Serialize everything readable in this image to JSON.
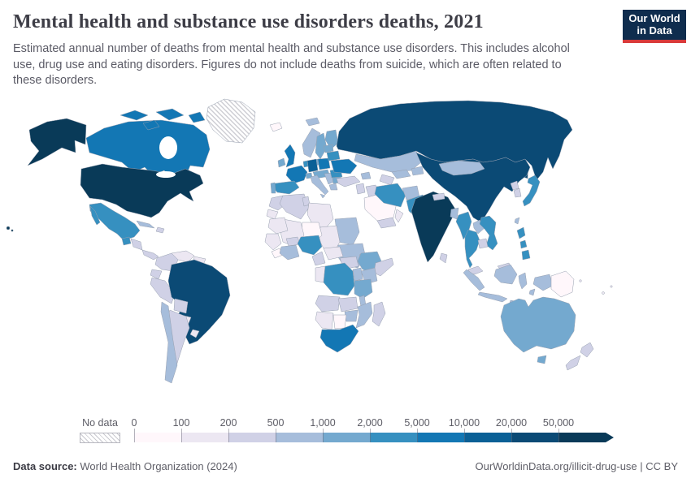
{
  "header": {
    "title": "Mental health and substance use disorders deaths, 2021",
    "logo": {
      "line1": "Our World",
      "line2": "in Data",
      "bg": "#0f2d4e",
      "accent": "#d93a3a"
    }
  },
  "subtitle": "Estimated annual number of deaths from mental health and substance use disorders. This includes alcohol use, drug use and eating disorders. Figures do not include deaths from suicide, which are often related to these disorders.",
  "legend": {
    "no_data_label": "No data"
  },
  "footer": {
    "source_label": "Data source:",
    "source_value": " World Health Organization (2024)",
    "link_text": "OurWorldinData.org/illicit-drug-use",
    "license_text": " | CC BY"
  },
  "chart_data": {
    "type": "heatmap",
    "subtype": "choropleth-world-map",
    "title": "Mental health and substance use disorders deaths",
    "year": 2021,
    "unit": "deaths",
    "legend_position": "bottom",
    "no_data_pattern": "diagonal-hatch",
    "bins": [
      {
        "label": "0",
        "range": "0–100",
        "color": "#fff7fb"
      },
      {
        "label": "100",
        "range": "100–200",
        "color": "#ece7f2"
      },
      {
        "label": "200",
        "range": "200–500",
        "color": "#d0d1e6"
      },
      {
        "label": "500",
        "range": "500–1,000",
        "color": "#a6bddb"
      },
      {
        "label": "1,000",
        "range": "1,000–2,000",
        "color": "#74a9cf"
      },
      {
        "label": "2,000",
        "range": "2,000–5,000",
        "color": "#3690c0"
      },
      {
        "label": "5,000",
        "range": "5,000–10,000",
        "color": "#1377b4"
      },
      {
        "label": "10,000",
        "range": "10,000–20,000",
        "color": "#0b6096"
      },
      {
        "label": "20,000",
        "range": "20,000–50,000",
        "color": "#0b4a75"
      },
      {
        "label": "50,000",
        "range": "50,000+",
        "color": "#093a58"
      }
    ],
    "regions": [
      {
        "id": "usa",
        "name": "United States",
        "bin": 9
      },
      {
        "id": "canada",
        "name": "Canada",
        "bin": 6
      },
      {
        "id": "greenland",
        "name": "Greenland",
        "bin": null
      },
      {
        "id": "mexico",
        "name": "Mexico",
        "bin": 5
      },
      {
        "id": "guatemala",
        "name": "Guatemala",
        "bin": 5
      },
      {
        "id": "honduras",
        "name": "Honduras/Nicaragua",
        "bin": 2
      },
      {
        "id": "panama",
        "name": "Costa Rica/Panama",
        "bin": 2
      },
      {
        "id": "cuba",
        "name": "Cuba",
        "bin": 3
      },
      {
        "id": "hispaniola",
        "name": "Haiti/Dominican Republic",
        "bin": 2
      },
      {
        "id": "colombia",
        "name": "Colombia",
        "bin": 2
      },
      {
        "id": "venezuela",
        "name": "Venezuela",
        "bin": 1
      },
      {
        "id": "guyanas",
        "name": "Guyana/Suriname",
        "bin": 1
      },
      {
        "id": "ecuador",
        "name": "Ecuador",
        "bin": 2
      },
      {
        "id": "peru",
        "name": "Peru",
        "bin": 2
      },
      {
        "id": "brazil",
        "name": "Brazil",
        "bin": 8
      },
      {
        "id": "bolivia",
        "name": "Bolivia",
        "bin": 2
      },
      {
        "id": "paraguay",
        "name": "Paraguay",
        "bin": 1
      },
      {
        "id": "uruguay",
        "name": "Uruguay",
        "bin": 1
      },
      {
        "id": "chile",
        "name": "Chile",
        "bin": 3
      },
      {
        "id": "argentina",
        "name": "Argentina",
        "bin": 2
      },
      {
        "id": "iceland",
        "name": "Iceland",
        "bin": 0
      },
      {
        "id": "svalbard",
        "name": "Svalbard (Norway)",
        "bin": 3
      },
      {
        "id": "norway",
        "name": "Norway",
        "bin": 3
      },
      {
        "id": "sweden",
        "name": "Sweden",
        "bin": 4
      },
      {
        "id": "finland",
        "name": "Finland",
        "bin": 4
      },
      {
        "id": "denmark",
        "name": "Denmark",
        "bin": 4
      },
      {
        "id": "uk",
        "name": "United Kingdom",
        "bin": 6
      },
      {
        "id": "ireland",
        "name": "Ireland",
        "bin": 4
      },
      {
        "id": "france",
        "name": "France",
        "bin": 6
      },
      {
        "id": "spain",
        "name": "Spain",
        "bin": 5
      },
      {
        "id": "portugal",
        "name": "Portugal",
        "bin": 4
      },
      {
        "id": "germany",
        "name": "Germany",
        "bin": 7
      },
      {
        "id": "benelux",
        "name": "Netherlands/Belgium",
        "bin": 5
      },
      {
        "id": "switzerland",
        "name": "Switzerland",
        "bin": 4
      },
      {
        "id": "central-europe",
        "name": "Czechia/Austria/Hungary",
        "bin": 4
      },
      {
        "id": "poland",
        "name": "Poland",
        "bin": 6
      },
      {
        "id": "italy",
        "name": "Italy",
        "bin": 3
      },
      {
        "id": "balkans",
        "name": "Balkans",
        "bin": 3
      },
      {
        "id": "greece",
        "name": "Greece",
        "bin": 3
      },
      {
        "id": "romania",
        "name": "Romania",
        "bin": 5
      },
      {
        "id": "bulgaria",
        "name": "Bulgaria",
        "bin": 4
      },
      {
        "id": "ukraine",
        "name": "Ukraine",
        "bin": 6
      },
      {
        "id": "belarus",
        "name": "Belarus",
        "bin": 5
      },
      {
        "id": "baltics",
        "name": "Baltic states",
        "bin": 4
      },
      {
        "id": "russia",
        "name": "Russia",
        "bin": 8
      },
      {
        "id": "kazakhstan",
        "name": "Kazakhstan",
        "bin": 3
      },
      {
        "id": "uzbekistan",
        "name": "Uzbekistan",
        "bin": 3
      },
      {
        "id": "turkmenistan",
        "name": "Turkmenistan",
        "bin": 2
      },
      {
        "id": "kyrgyzstan",
        "name": "Kyrgyzstan/Tajikistan",
        "bin": 3
      },
      {
        "id": "turkey",
        "name": "Turkey",
        "bin": 2
      },
      {
        "id": "caucasus",
        "name": "Caucasus",
        "bin": 3
      },
      {
        "id": "levant",
        "name": "Syria/Levant",
        "bin": 2
      },
      {
        "id": "iraq",
        "name": "Iraq",
        "bin": 2
      },
      {
        "id": "saudi",
        "name": "Saudi Arabia",
        "bin": 0
      },
      {
        "id": "yemen",
        "name": "Yemen",
        "bin": 2
      },
      {
        "id": "oman",
        "name": "Oman",
        "bin": 1
      },
      {
        "id": "iran",
        "name": "Iran",
        "bin": 5
      },
      {
        "id": "afghanistan",
        "name": "Afghanistan",
        "bin": 3
      },
      {
        "id": "pakistan",
        "name": "Pakistan",
        "bin": 5
      },
      {
        "id": "india",
        "name": "India",
        "bin": 9
      },
      {
        "id": "nepal",
        "name": "Nepal",
        "bin": 2
      },
      {
        "id": "bangladesh",
        "name": "Bangladesh",
        "bin": 3
      },
      {
        "id": "srilanka",
        "name": "Sri Lanka",
        "bin": 2
      },
      {
        "id": "china",
        "name": "China",
        "bin": 8
      },
      {
        "id": "mongolia",
        "name": "Mongolia",
        "bin": 3
      },
      {
        "id": "nkorea",
        "name": "North Korea",
        "bin": 2
      },
      {
        "id": "skorea",
        "name": "South Korea",
        "bin": 2
      },
      {
        "id": "japan",
        "name": "Japan",
        "bin": 5
      },
      {
        "id": "taiwan",
        "name": "Taiwan",
        "bin": 3
      },
      {
        "id": "myanmar",
        "name": "Myanmar",
        "bin": 5
      },
      {
        "id": "laos",
        "name": "Laos",
        "bin": 3
      },
      {
        "id": "vietnam",
        "name": "Vietnam",
        "bin": 5
      },
      {
        "id": "thailand",
        "name": "Thailand",
        "bin": 5
      },
      {
        "id": "cambodia",
        "name": "Cambodia",
        "bin": 2
      },
      {
        "id": "malaysia",
        "name": "Malaysia",
        "bin": 2
      },
      {
        "id": "indonesia",
        "name": "Indonesia",
        "bin": 3
      },
      {
        "id": "png",
        "name": "Papua New Guinea",
        "bin": 0
      },
      {
        "id": "philippines",
        "name": "Philippines",
        "bin": 5
      },
      {
        "id": "australia",
        "name": "Australia",
        "bin": 4
      },
      {
        "id": "nz",
        "name": "New Zealand",
        "bin": 2
      },
      {
        "id": "fiji",
        "name": "Pacific island states",
        "bin": 1
      },
      {
        "id": "morocco",
        "name": "Morocco",
        "bin": 2
      },
      {
        "id": "wsahara",
        "name": "Western Sahara",
        "bin": 1
      },
      {
        "id": "algeria",
        "name": "Algeria",
        "bin": 2
      },
      {
        "id": "tunisia",
        "name": "Tunisia",
        "bin": 2
      },
      {
        "id": "libya",
        "name": "Libya",
        "bin": 1
      },
      {
        "id": "egypt",
        "name": "Egypt",
        "bin": 3
      },
      {
        "id": "sudan",
        "name": "Sudan",
        "bin": 3
      },
      {
        "id": "eritrea",
        "name": "Eritrea/Djibouti",
        "bin": 2
      },
      {
        "id": "mauritania",
        "name": "Mauritania",
        "bin": 1
      },
      {
        "id": "mali",
        "name": "Mali",
        "bin": 1
      },
      {
        "id": "niger",
        "name": "Niger",
        "bin": 0
      },
      {
        "id": "chad",
        "name": "Chad",
        "bin": 1
      },
      {
        "id": "senegal",
        "name": "Senegal/Guinea",
        "bin": 1
      },
      {
        "id": "sierra",
        "name": "Sierra Leone/Liberia",
        "bin": 0
      },
      {
        "id": "ghana",
        "name": "Côte d'Ivoire/Ghana",
        "bin": 3
      },
      {
        "id": "burkina",
        "name": "Burkina Faso",
        "bin": 2
      },
      {
        "id": "nigeria",
        "name": "Nigeria",
        "bin": 5
      },
      {
        "id": "cameroon",
        "name": "Cameroon",
        "bin": 2
      },
      {
        "id": "car",
        "name": "Central African Republic",
        "bin": 1
      },
      {
        "id": "ssudan",
        "name": "South Sudan",
        "bin": 2
      },
      {
        "id": "ethiopia",
        "name": "Ethiopia",
        "bin": 4
      },
      {
        "id": "somalia",
        "name": "Somalia",
        "bin": 2
      },
      {
        "id": "kenya",
        "name": "Kenya",
        "bin": 3
      },
      {
        "id": "uganda",
        "name": "Uganda",
        "bin": 3
      },
      {
        "id": "drc",
        "name": "Democratic Republic of Congo",
        "bin": 5
      },
      {
        "id": "congo",
        "name": "Congo/Gabon",
        "bin": 1
      },
      {
        "id": "tanzania",
        "name": "Tanzania",
        "bin": 4
      },
      {
        "id": "angola",
        "name": "Angola",
        "bin": 2
      },
      {
        "id": "zambia",
        "name": "Zambia",
        "bin": 2
      },
      {
        "id": "malawi",
        "name": "Malawi",
        "bin": 3
      },
      {
        "id": "mozambique",
        "name": "Mozambique",
        "bin": 3
      },
      {
        "id": "zimbabwe",
        "name": "Zimbabwe",
        "bin": 3
      },
      {
        "id": "namibia",
        "name": "Namibia",
        "bin": 1
      },
      {
        "id": "botswana",
        "name": "Botswana",
        "bin": 0
      },
      {
        "id": "southafrica",
        "name": "South Africa",
        "bin": 6
      },
      {
        "id": "madagascar",
        "name": "Madagascar",
        "bin": 2
      }
    ]
  }
}
